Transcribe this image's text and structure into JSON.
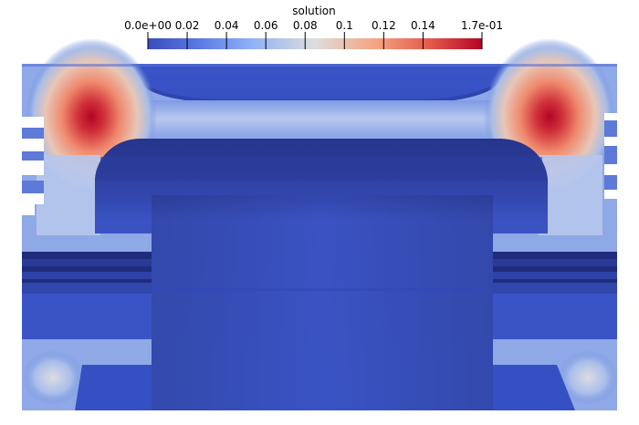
{
  "colorbar": {
    "title": "solution",
    "ticks": [
      {
        "value": 0.0,
        "label": "0.0e+00"
      },
      {
        "value": 0.02,
        "label": "0.02"
      },
      {
        "value": 0.04,
        "label": "0.04"
      },
      {
        "value": 0.06,
        "label": "0.06"
      },
      {
        "value": 0.08,
        "label": "0.08"
      },
      {
        "value": 0.1,
        "label": "0.1"
      },
      {
        "value": 0.12,
        "label": "0.12"
      },
      {
        "value": 0.14,
        "label": "0.14"
      },
      {
        "value": 0.17,
        "label": "1.7e-01"
      }
    ],
    "range": [
      0.0,
      0.17
    ],
    "colors": {
      "low": "#3b4cc0",
      "mid": "#dddddd",
      "high": "#b40426"
    }
  },
  "scene": {
    "background": "#ffffff",
    "colors": {
      "body_base": "#3e5ad0",
      "body_dark": "#2a3a9e",
      "cavity_top": "#27378f",
      "cavity_mid": "#3448b2",
      "cavity_low": "#3c55c6",
      "hot": "#b40426",
      "warm": "#f4a582",
      "cool": "#c7d3ec"
    }
  }
}
